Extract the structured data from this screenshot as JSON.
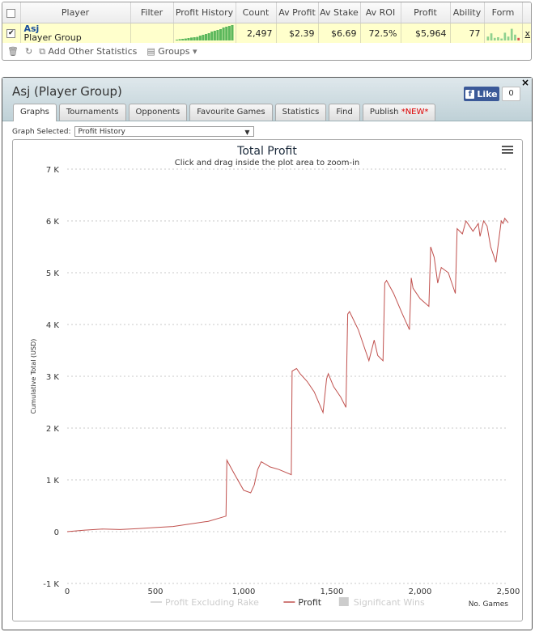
{
  "table": {
    "headers": [
      "",
      "Player",
      "Filter",
      "Profit History",
      "Count",
      "Av Profit",
      "Av Stake",
      "Av ROI",
      "Profit",
      "Ability",
      "Form",
      ""
    ],
    "row": {
      "checked": "✔",
      "player_name": "Asj",
      "player_group": "Player Group",
      "filter": "",
      "count": "2,497",
      "av_profit": "$2.39",
      "av_stake": "$6.69",
      "av_roi": "72.5%",
      "profit": "$5,964",
      "ability": "77",
      "remove": "x"
    },
    "profit_history_bars": [
      0.05,
      0.08,
      0.1,
      0.12,
      0.15,
      0.18,
      0.2,
      0.22,
      0.3,
      0.35,
      0.4,
      0.45,
      0.55,
      0.6,
      0.65,
      0.7,
      0.8,
      0.85,
      0.9,
      0.95
    ],
    "form_bars": [
      0.3,
      0.55,
      0.2,
      0.25,
      0.15,
      0.6,
      0.3,
      0.9,
      0.45,
      0.2
    ]
  },
  "footer": {
    "add_other_statistics": "Add Other Statistics",
    "groups": "Groups"
  },
  "window": {
    "title": "Asj (Player Group)",
    "close": "×",
    "like_label": "Like",
    "like_count": "0",
    "tabs": [
      {
        "label": "Graphs",
        "active": true
      },
      {
        "label": "Tournaments"
      },
      {
        "label": "Opponents"
      },
      {
        "label": "Favourite Games"
      },
      {
        "label": "Statistics"
      },
      {
        "label": "Find"
      },
      {
        "label": "Publish ",
        "badge": "*NEW*"
      }
    ],
    "graph_selected_label": "Graph Selected:",
    "graph_selected_value": "Profit History"
  },
  "chart_data": {
    "type": "line",
    "title": "Total Profit",
    "subtitle": "Click and drag inside the plot area to zoom-in",
    "ylabel": "Cumulative Total (USD)",
    "xlabel": "No. Games",
    "ylim": [
      -1000,
      7000
    ],
    "xlim": [
      0,
      2500
    ],
    "y_ticks": [
      -1000,
      0,
      1000,
      2000,
      3000,
      4000,
      5000,
      6000,
      7000
    ],
    "y_tick_labels": [
      "-1 K",
      "0",
      "1 K",
      "2 K",
      "3 K",
      "4 K",
      "5 K",
      "6 K",
      "7 K"
    ],
    "x_ticks": [
      0,
      500,
      1000,
      1500,
      2000,
      2500
    ],
    "x_tick_labels": [
      "0",
      "500",
      "1,000",
      "1,500",
      "2,000",
      "2,500"
    ],
    "grid": true,
    "legend": [
      {
        "name": "Profit Excluding Rake",
        "color": "#cccccc",
        "enabled": false
      },
      {
        "name": "Profit",
        "color": "#c0504d",
        "enabled": true
      },
      {
        "name": "Significant Wins",
        "color": "#cccccc",
        "enabled": false
      }
    ],
    "series": [
      {
        "name": "Profit",
        "color": "#c0504d",
        "x": [
          0,
          100,
          200,
          300,
          400,
          500,
          600,
          700,
          800,
          900,
          905,
          950,
          1000,
          1040,
          1060,
          1080,
          1100,
          1150,
          1200,
          1270,
          1275,
          1300,
          1320,
          1360,
          1400,
          1450,
          1470,
          1480,
          1510,
          1550,
          1580,
          1590,
          1600,
          1650,
          1690,
          1710,
          1740,
          1760,
          1790,
          1800,
          1810,
          1850,
          1900,
          1940,
          1950,
          1960,
          2000,
          2050,
          2060,
          2080,
          2100,
          2120,
          2160,
          2200,
          2210,
          2240,
          2260,
          2270,
          2300,
          2330,
          2340,
          2360,
          2380,
          2400,
          2430,
          2460,
          2470,
          2480,
          2500
        ],
        "y": [
          0,
          30,
          50,
          40,
          60,
          80,
          100,
          150,
          200,
          300,
          1380,
          1100,
          800,
          750,
          900,
          1200,
          1350,
          1250,
          1200,
          1100,
          3100,
          3150,
          3050,
          2900,
          2700,
          2300,
          2950,
          3050,
          2800,
          2600,
          2400,
          4200,
          4250,
          3900,
          3500,
          3300,
          3700,
          3400,
          3300,
          4800,
          4850,
          4600,
          4200,
          3900,
          4900,
          4700,
          4500,
          4350,
          5500,
          5300,
          4800,
          5100,
          5000,
          4600,
          5850,
          5750,
          6000,
          5950,
          5800,
          5950,
          5700,
          6000,
          5900,
          5500,
          5200,
          6000,
          5950,
          6050,
          5964
        ]
      }
    ]
  }
}
